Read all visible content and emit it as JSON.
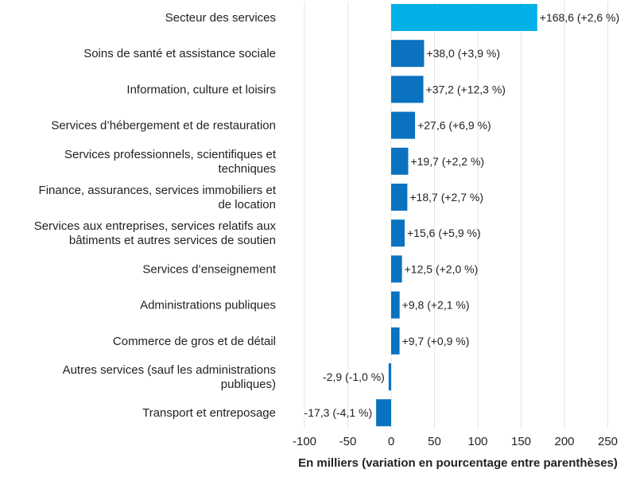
{
  "chart_data": {
    "type": "bar",
    "orientation": "horizontal",
    "title": "",
    "xlabel": "En milliers (variation en pourcentage entre parenthèses)",
    "ylabel": "",
    "xlim": [
      -125,
      280
    ],
    "xticks": [
      -100,
      -50,
      0,
      50,
      100,
      150,
      200,
      250
    ],
    "xtick_labels": [
      "-100",
      "-50",
      "0",
      "50",
      "100",
      "150",
      "200",
      "250"
    ],
    "grid": "vertical",
    "categories": [
      [
        "Secteur des services"
      ],
      [
        "Soins de santé et assistance sociale"
      ],
      [
        "Information, culture et loisirs"
      ],
      [
        "Services d’hébergement et de restauration"
      ],
      [
        "Services professionnels, scientifiques et",
        "techniques"
      ],
      [
        "Finance, assurances, services immobiliers et",
        "de location"
      ],
      [
        "Services aux entreprises, services relatifs aux",
        "bâtiments et autres services de soutien"
      ],
      [
        "Services d’enseignement"
      ],
      [
        "Administrations publiques"
      ],
      [
        "Commerce de gros et de détail"
      ],
      [
        "Autres services (sauf les administrations",
        "publiques)"
      ],
      [
        "Transport et entreposage"
      ]
    ],
    "values": [
      168.6,
      38.0,
      37.2,
      27.6,
      19.7,
      18.7,
      15.6,
      12.5,
      9.8,
      9.7,
      -2.9,
      -17.3
    ],
    "data_labels": [
      "+168,6 (+2,6 %)",
      "+38,0 (+3,9 %)",
      "+37,2 (+12,3 %)",
      "+27,6 (+6,9 %)",
      "+19,7 (+2,2 %)",
      "+18,7 (+2,7 %)",
      "+15,6 (+5,9 %)",
      "+12,5 (+2,0 %)",
      "+9,8 (+2,1 %)",
      "+9,7 (+0,9 %)",
      "-2,9 (-1,0 %)",
      "-17,3 (-4,1 %)"
    ],
    "bar_colors": [
      "#00b0e6",
      "#0a72c0",
      "#0a72c0",
      "#0a72c0",
      "#0a72c0",
      "#0a72c0",
      "#0a72c0",
      "#0a72c0",
      "#0a72c0",
      "#0a72c0",
      "#0a72c0",
      "#0a72c0"
    ]
  },
  "colors": {
    "highlight": "#00b0e6",
    "bar": "#0a72c0",
    "grid": "#e6e6e6",
    "text": "#222222"
  }
}
